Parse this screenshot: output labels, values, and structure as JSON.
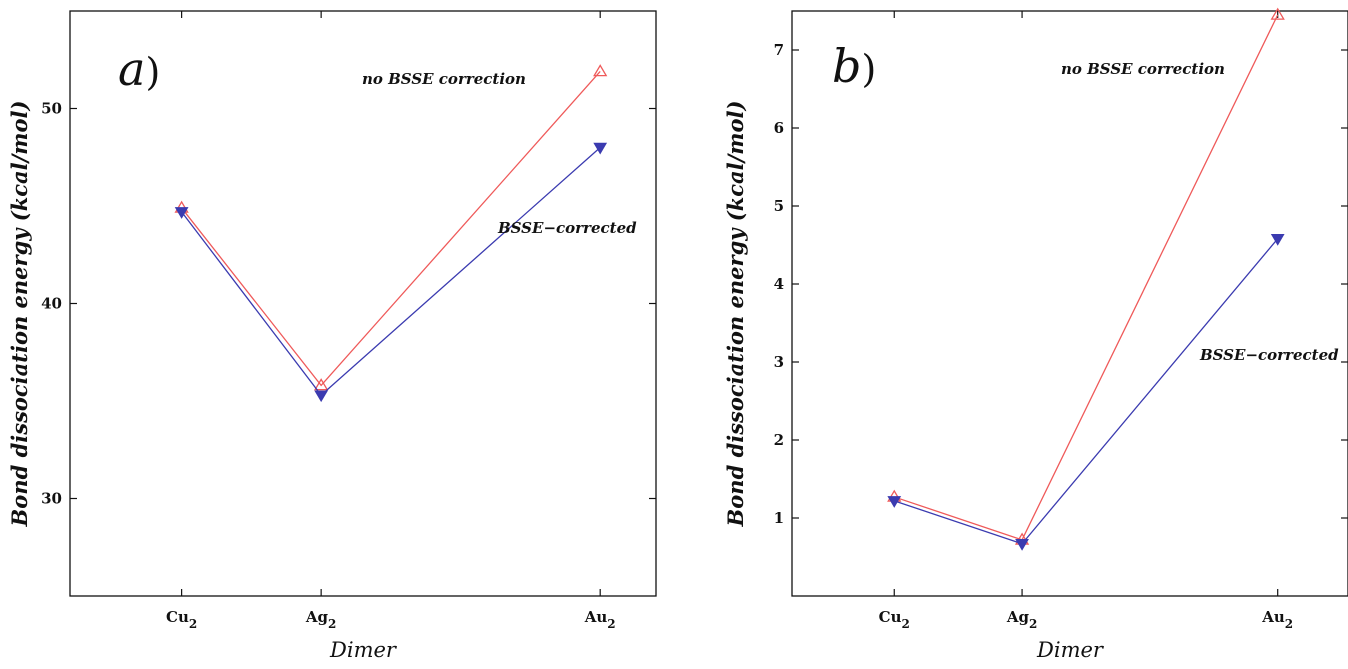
{
  "colors": {
    "uncorrected": "#ef5a5a",
    "corrected": "#3b3bb0",
    "axis": "#111111"
  },
  "chart_data": [
    {
      "type": "line",
      "panel_label": "a",
      "xlabel": "Dimer",
      "ylabel": "Bond dissociation energy (kcal/mol)",
      "categories": [
        {
          "base": "Cu",
          "sub": "2",
          "x": 1
        },
        {
          "base": "Ag",
          "sub": "2",
          "x": 2
        },
        {
          "base": "Au",
          "sub": "2",
          "x": 4
        }
      ],
      "xlim": [
        0.2,
        4.4
      ],
      "ylim": [
        25,
        55
      ],
      "yticks": [
        30,
        40,
        50
      ],
      "series": [
        {
          "name": "no BSSE correction",
          "marker": "triangle-up-open",
          "color_key": "uncorrected",
          "values": [
            44.9,
            35.8,
            51.9
          ]
        },
        {
          "name": "BSSE−corrected",
          "marker": "triangle-down-filled",
          "color_key": "corrected",
          "values": [
            44.7,
            35.3,
            48.0
          ]
        }
      ],
      "grid": false
    },
    {
      "type": "line",
      "panel_label": "b",
      "xlabel": "Dimer",
      "ylabel": "Bond dissociation energy (kcal/mol)",
      "categories": [
        {
          "base": "Cu",
          "sub": "2",
          "x": 1
        },
        {
          "base": "Ag",
          "sub": "2",
          "x": 2
        },
        {
          "base": "Au",
          "sub": "2",
          "x": 4
        }
      ],
      "xlim": [
        0.2,
        4.55
      ],
      "ylim": [
        0,
        7.5
      ],
      "yticks": [
        1,
        2,
        3,
        4,
        5,
        6,
        7
      ],
      "series": [
        {
          "name": "no BSSE correction",
          "marker": "triangle-up-open",
          "color_key": "uncorrected",
          "values": [
            1.27,
            0.72,
            7.45
          ]
        },
        {
          "name": "BSSE−corrected",
          "marker": "triangle-down-filled",
          "color_key": "corrected",
          "values": [
            1.22,
            0.67,
            4.58
          ]
        }
      ],
      "grid": false
    }
  ]
}
